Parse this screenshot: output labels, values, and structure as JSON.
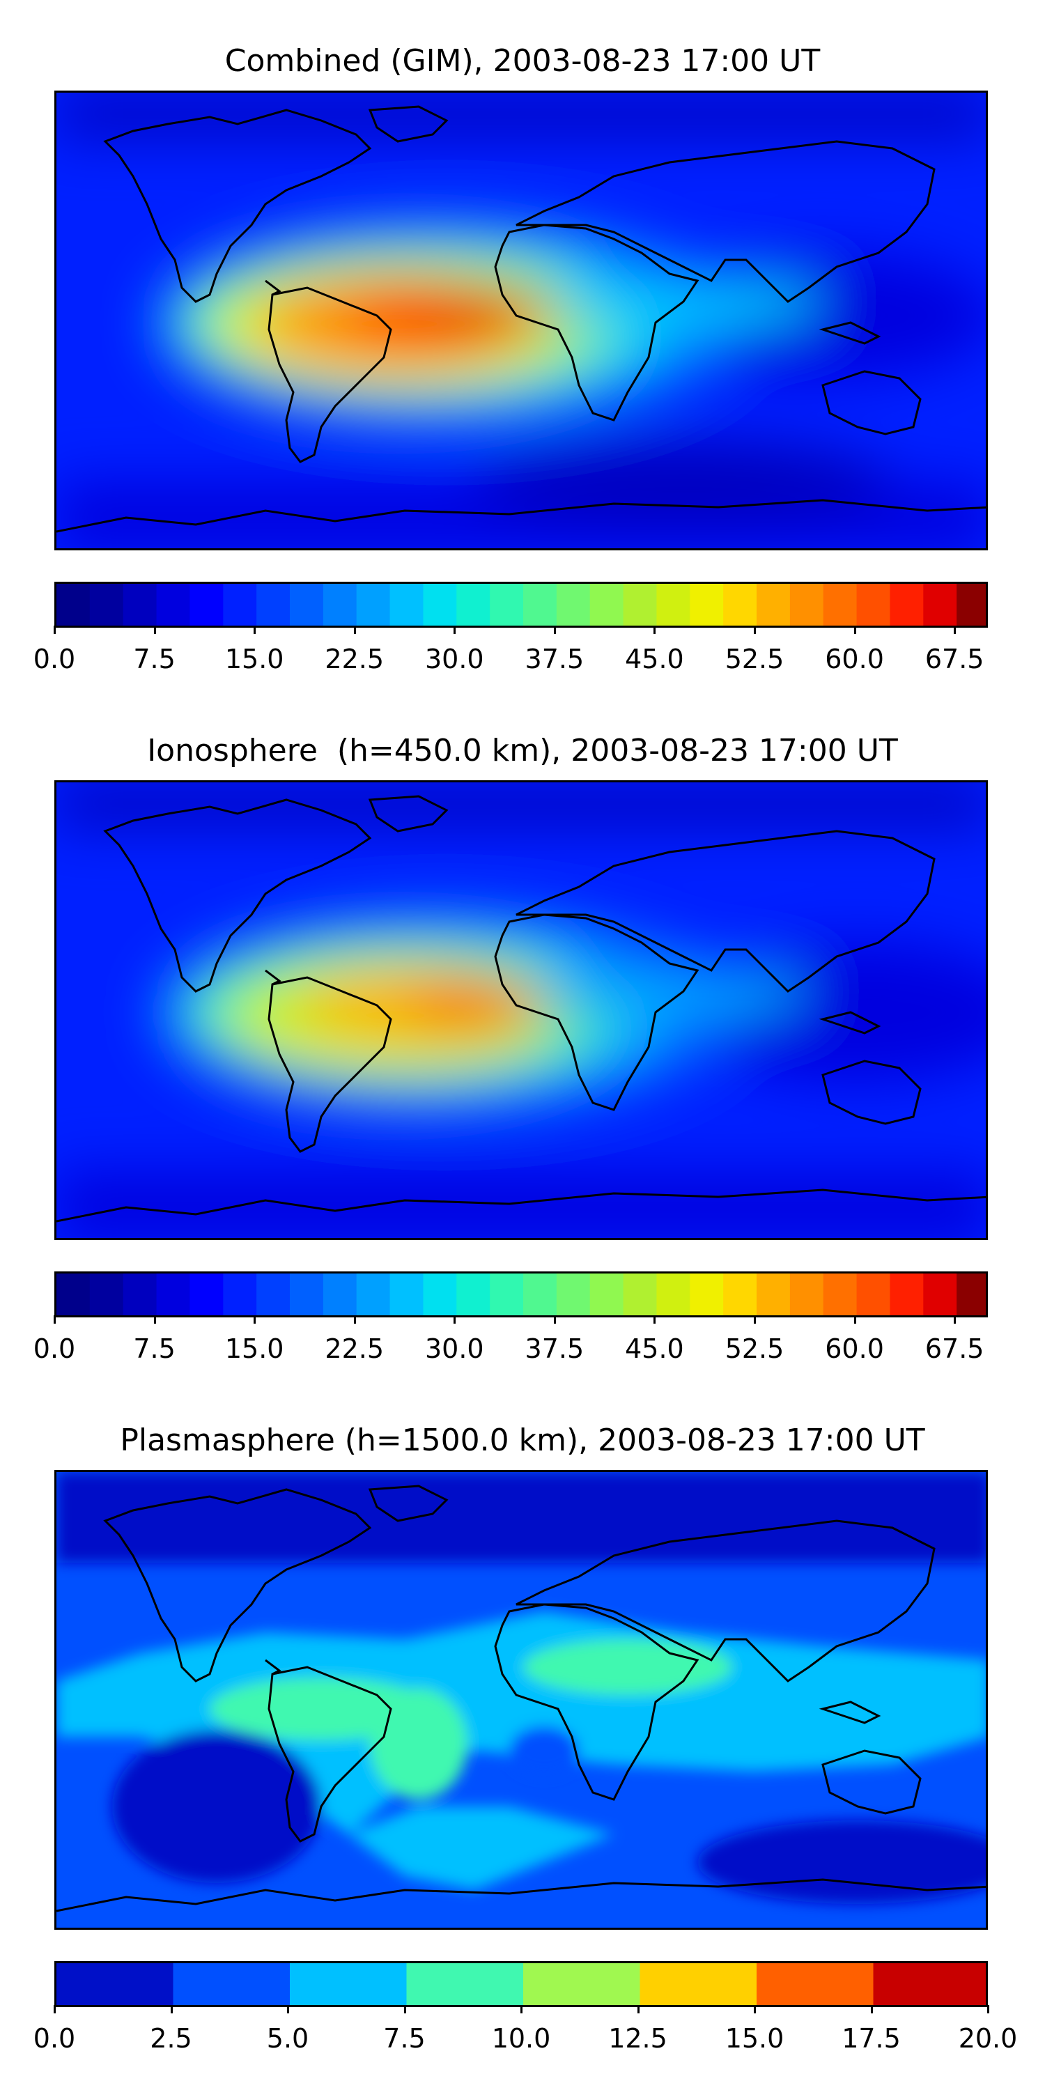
{
  "chart_data": [
    {
      "type": "heatmap",
      "title": "Combined (GIM), 2003-08-23 17:00 UT",
      "colorbar": {
        "range": [
          0,
          70
        ],
        "levels": 28,
        "tick_labels": [
          "0.0",
          "7.5",
          "15.0",
          "22.5",
          "30.0",
          "37.5",
          "45.0",
          "52.5",
          "60.0",
          "67.5"
        ],
        "tick_values": [
          0,
          7.5,
          15,
          22.5,
          30,
          37.5,
          45,
          52.5,
          60,
          67.5
        ],
        "colors": [
          "#00008b",
          "#00009f",
          "#0000bf",
          "#0000df",
          "#0000ff",
          "#0020ff",
          "#0040ff",
          "#0060ff",
          "#0080ff",
          "#00a0ff",
          "#00c0ff",
          "#00e0f0",
          "#10f0d0",
          "#30f8b0",
          "#50f890",
          "#70f870",
          "#90f850",
          "#b0f030",
          "#d0f010",
          "#f0f000",
          "#ffd700",
          "#ffb000",
          "#ff9000",
          "#ff7000",
          "#ff5000",
          "#ff2000",
          "#e00000",
          "#8b0000"
        ]
      },
      "peak_region": "tropical South America and Atlantic, max near 65"
    },
    {
      "type": "heatmap",
      "title": "Ionosphere  (h=450.0 km), 2003-08-23 17:00 UT",
      "colorbar": {
        "range": [
          0,
          70
        ],
        "levels": 28,
        "tick_labels": [
          "0.0",
          "7.5",
          "15.0",
          "22.5",
          "30.0",
          "37.5",
          "45.0",
          "52.5",
          "60.0",
          "67.5"
        ],
        "tick_values": [
          0,
          7.5,
          15,
          22.5,
          30,
          37.5,
          45,
          52.5,
          60,
          67.5
        ],
        "colors": [
          "#00008b",
          "#00009f",
          "#0000bf",
          "#0000df",
          "#0000ff",
          "#0020ff",
          "#0040ff",
          "#0060ff",
          "#0080ff",
          "#00a0ff",
          "#00c0ff",
          "#00e0f0",
          "#10f0d0",
          "#30f8b0",
          "#50f890",
          "#70f870",
          "#90f850",
          "#b0f030",
          "#d0f010",
          "#f0f000",
          "#ffd700",
          "#ffb000",
          "#ff9000",
          "#ff7000",
          "#ff5000",
          "#ff2000",
          "#e00000",
          "#8b0000"
        ]
      },
      "peak_region": "tropical South America and Atlantic, max near 57"
    },
    {
      "type": "heatmap",
      "title": "Plasmasphere (h=1500.0 km), 2003-08-23 17:00 UT",
      "colorbar": {
        "range": [
          0,
          20
        ],
        "levels": 8,
        "tick_labels": [
          "0.0",
          "2.5",
          "5.0",
          "7.5",
          "10.0",
          "12.5",
          "15.0",
          "17.5",
          "20.0"
        ],
        "tick_values": [
          0,
          2.5,
          5,
          7.5,
          10,
          12.5,
          15,
          17.5,
          20
        ],
        "colors": [
          "#0010c8",
          "#0050ff",
          "#00c0ff",
          "#40f8b0",
          "#a0f850",
          "#ffd000",
          "#ff6000",
          "#c80000"
        ]
      },
      "peak_region": "low latitudes, values mostly 2.5 to 10"
    }
  ]
}
